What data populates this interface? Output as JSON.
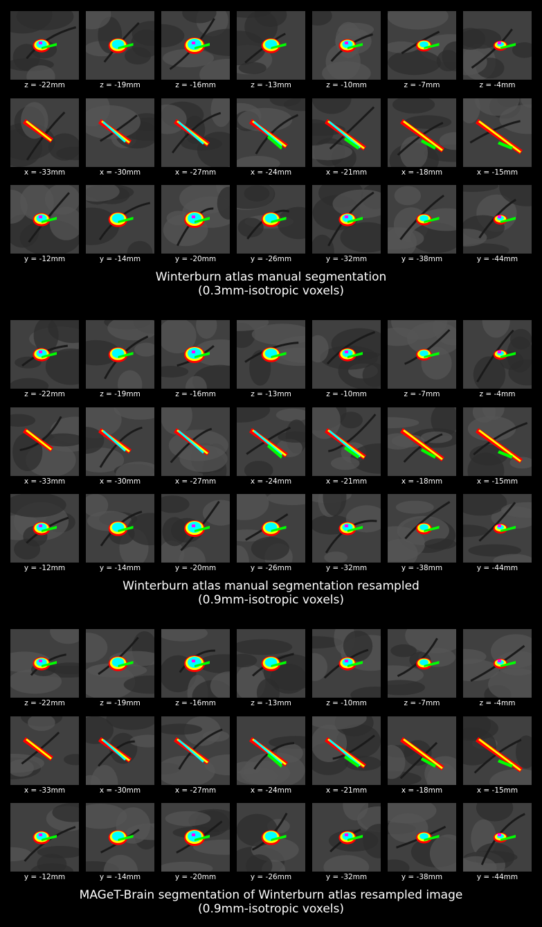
{
  "colors": {
    "background": "#000000",
    "label_red": "#ff0000",
    "label_yellow": "#ffff00",
    "label_green": "#00ff00",
    "label_cyan": "#00ffff",
    "label_magenta": "#ff00ff"
  },
  "sections": [
    {
      "title": "Winterburn atlas manual segmentation",
      "subtitle": "(0.3mm-isotropic voxels)",
      "rows": [
        {
          "plane": "axial",
          "labels": [
            "z = -22mm",
            "z = -19mm",
            "z = -16mm",
            "z = -13mm",
            "z = -10mm",
            "z = -7mm",
            "z = -4mm"
          ]
        },
        {
          "plane": "sagittal",
          "labels": [
            "x = -33mm",
            "x = -30mm",
            "x = -27mm",
            "x = -24mm",
            "x = -21mm",
            "x = -18mm",
            "x = -15mm"
          ]
        },
        {
          "plane": "coronal",
          "labels": [
            "y = -12mm",
            "y = -14mm",
            "y = -20mm",
            "y = -26mm",
            "y = -32mm",
            "y = -38mm",
            "y = -44mm"
          ]
        }
      ]
    },
    {
      "title": "Winterburn atlas manual segmentation resampled",
      "subtitle": "(0.9mm-isotropic voxels)",
      "rows": [
        {
          "plane": "axial",
          "labels": [
            "z = -22mm",
            "z = -19mm",
            "z = -16mm",
            "z = -13mm",
            "z = -10mm",
            "z = -7mm",
            "z = -4mm"
          ]
        },
        {
          "plane": "sagittal",
          "labels": [
            "x = -33mm",
            "x = -30mm",
            "x = -27mm",
            "x = -24mm",
            "x = -21mm",
            "x = -18mm",
            "x = -15mm"
          ]
        },
        {
          "plane": "coronal",
          "labels": [
            "y = -12mm",
            "y = -14mm",
            "y = -20mm",
            "y = -26mm",
            "y = -32mm",
            "y = -38mm",
            "y = -44mm"
          ]
        }
      ]
    },
    {
      "title": "MAGeT-Brain segmentation of Winterburn atlas resampled image",
      "subtitle": "(0.9mm-isotropic voxels)",
      "rows": [
        {
          "plane": "axial",
          "labels": [
            "z = -22mm",
            "z = -19mm",
            "z = -16mm",
            "z = -13mm",
            "z = -10mm",
            "z = -7mm",
            "z = -4mm"
          ]
        },
        {
          "plane": "sagittal",
          "labels": [
            "x = -33mm",
            "x = -30mm",
            "x = -27mm",
            "x = -24mm",
            "x = -21mm",
            "x = -18mm",
            "x = -15mm"
          ]
        },
        {
          "plane": "coronal",
          "labels": [
            "y = -12mm",
            "y = -14mm",
            "y = -20mm",
            "y = -26mm",
            "y = -32mm",
            "y = -38mm",
            "y = -44mm"
          ]
        }
      ]
    }
  ]
}
